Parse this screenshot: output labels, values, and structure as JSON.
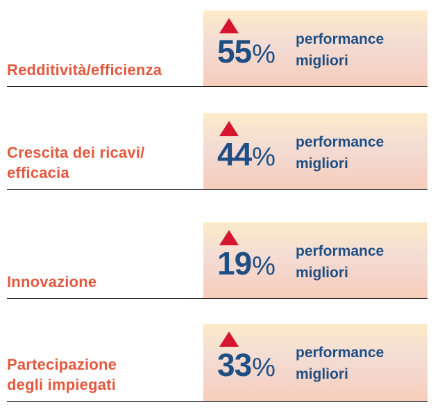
{
  "metrics": [
    {
      "label_lines": [
        "Redditività/efficienza"
      ],
      "value": "55",
      "unit": "%",
      "desc_lines": [
        "performance",
        "migliori"
      ]
    },
    {
      "label_lines": [
        "Crescita dei ricavi/",
        "efficacia"
      ],
      "value": "44",
      "unit": "%",
      "desc_lines": [
        "performance",
        "migliori"
      ]
    },
    {
      "label_lines": [
        "Innovazione"
      ],
      "value": "19",
      "unit": "%",
      "desc_lines": [
        "performance",
        "migliori"
      ]
    },
    {
      "label_lines": [
        "Partecipazione",
        "degli impiegati"
      ],
      "value": "33",
      "unit": "%",
      "desc_lines": [
        "performance",
        "migliori"
      ]
    }
  ],
  "colors": {
    "label": "#e2583e",
    "value": "#1f4e83",
    "triangle": "#d6162f"
  },
  "icons": {
    "indicator": "up-triangle-icon"
  }
}
